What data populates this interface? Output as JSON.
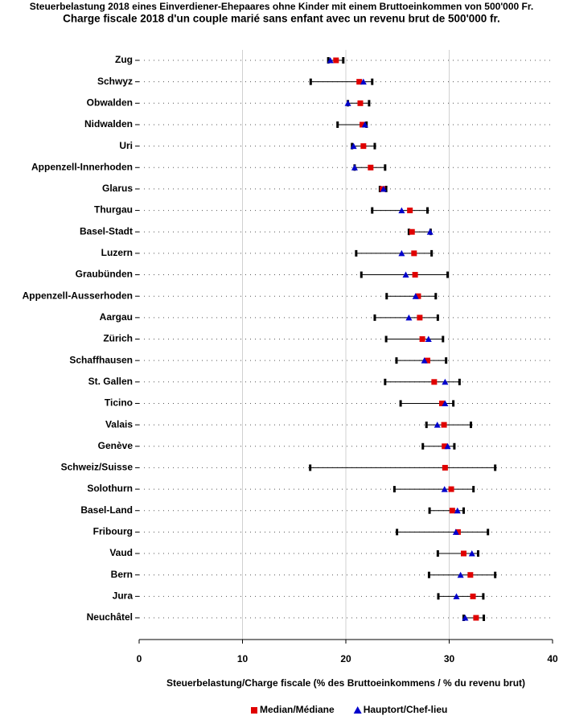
{
  "chart_data": {
    "type": "dot",
    "title": "Steuerbelastung 2018 eines Einverdiener-Ehepaares ohne Kinder mit einem Bruttoeinkommen von 500'000 Fr.",
    "subtitle": "Charge fiscale 2018 d'un couple marié sans enfant avec un revenu brut de 500'000 fr.",
    "x_label": "Steuerbelastung/Charge fiscale (% des Bruttoeinkommens / % du revenu brut)",
    "categories": [
      "Zug",
      "Schwyz",
      "Obwalden",
      "Nidwalden",
      "Uri",
      "Appenzell-Innerhoden",
      "Glarus",
      "Thurgau",
      "Basel-Stadt",
      "Luzern",
      "Graubünden",
      "Appenzell-Ausserhoden",
      "Aargau",
      "Zürich",
      "Schaffhausen",
      "St. Gallen",
      "Ticino",
      "Valais",
      "Genève",
      "Schweiz/Suisse",
      "Solothurn",
      "Basel-Land",
      "Fribourg",
      "Vaud",
      "Bern",
      "Jura",
      "Neuchâtel"
    ],
    "min": [
      18.3,
      16.6,
      20.2,
      19.2,
      20.6,
      20.85,
      23.3,
      22.55,
      26.1,
      21.0,
      21.5,
      23.95,
      22.8,
      23.9,
      24.9,
      23.8,
      25.3,
      27.8,
      27.45,
      16.55,
      24.7,
      28.1,
      24.95,
      28.9,
      28.05,
      28.95,
      31.4
    ],
    "max": [
      19.75,
      22.55,
      22.25,
      22.0,
      22.8,
      23.8,
      23.9,
      27.9,
      28.2,
      28.3,
      29.85,
      28.7,
      28.9,
      29.4,
      29.7,
      31.0,
      30.4,
      32.1,
      30.5,
      34.45,
      32.35,
      31.4,
      33.75,
      32.8,
      34.45,
      33.3,
      33.35
    ],
    "range_color": "#000000",
    "series": [
      {
        "name": "Median/Médiane",
        "color": "#e00000",
        "marker": "square",
        "values": [
          19.05,
          21.3,
          21.4,
          21.6,
          21.7,
          22.4,
          23.55,
          26.2,
          26.4,
          26.6,
          26.7,
          27.0,
          27.15,
          27.4,
          27.9,
          28.55,
          29.3,
          29.5,
          29.55,
          29.6,
          30.2,
          30.3,
          30.85,
          31.4,
          32.05,
          32.3,
          32.6
        ]
      },
      {
        "name": "Hauptort/Chef-lieu",
        "color": "#0000cc",
        "marker": "triangle",
        "values": [
          18.5,
          21.7,
          20.2,
          21.85,
          20.75,
          20.85,
          23.65,
          25.4,
          28.15,
          25.4,
          25.8,
          26.75,
          26.1,
          28.0,
          27.6,
          29.6,
          29.6,
          28.85,
          29.85,
          null,
          29.55,
          30.8,
          30.65,
          32.2,
          31.1,
          30.7,
          31.55
        ]
      }
    ],
    "xlim": [
      0,
      40
    ],
    "xticks": [
      0,
      10,
      20,
      30,
      40
    ],
    "grid": true
  }
}
